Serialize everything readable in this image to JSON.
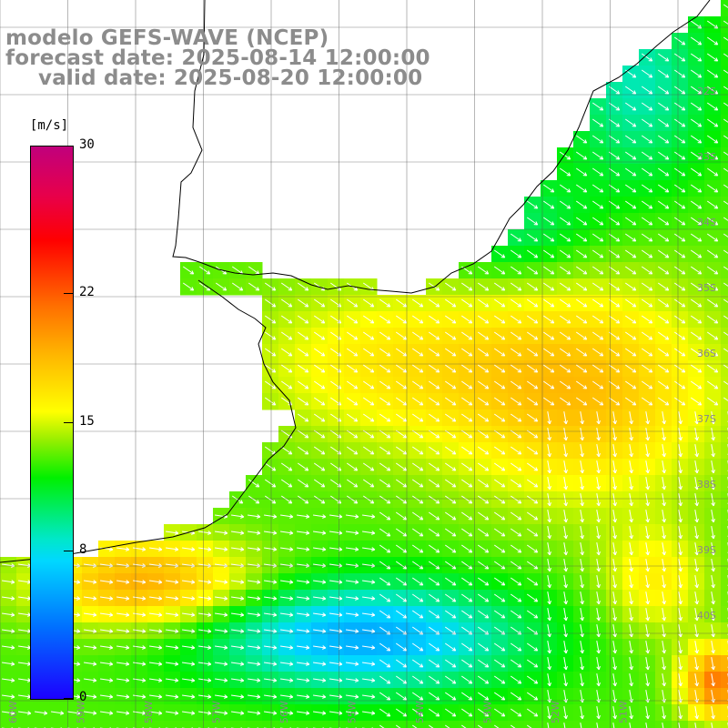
{
  "titles": {
    "line1": "modelo GEFS-WAVE (NCEP)",
    "line2": "forecast date: 2025-08-14 12:00:00",
    "line3": "valid date: 2025-08-20 12:00:00"
  },
  "colorbar": {
    "units": "[m/s]",
    "ticks": [
      "30",
      "22",
      "15",
      "8",
      "0"
    ],
    "tick_values": [
      30,
      22,
      15,
      8,
      0
    ],
    "colors": [
      "#1c00ff",
      "#00e8ff",
      "#00f000",
      "#ffff00",
      "#ff7000",
      "#ff0000",
      "#c0007c"
    ]
  },
  "map": {
    "lat_labels": [
      "32S",
      "33S",
      "34S",
      "35S",
      "36S",
      "37S",
      "38S",
      "39S",
      "40S"
    ],
    "lon_labels": [
      "60W",
      "59W",
      "58W",
      "57W",
      "56W",
      "55W",
      "54W",
      "53W",
      "52W",
      "51W"
    ],
    "grid": true,
    "land_color": "#ffffff"
  }
}
